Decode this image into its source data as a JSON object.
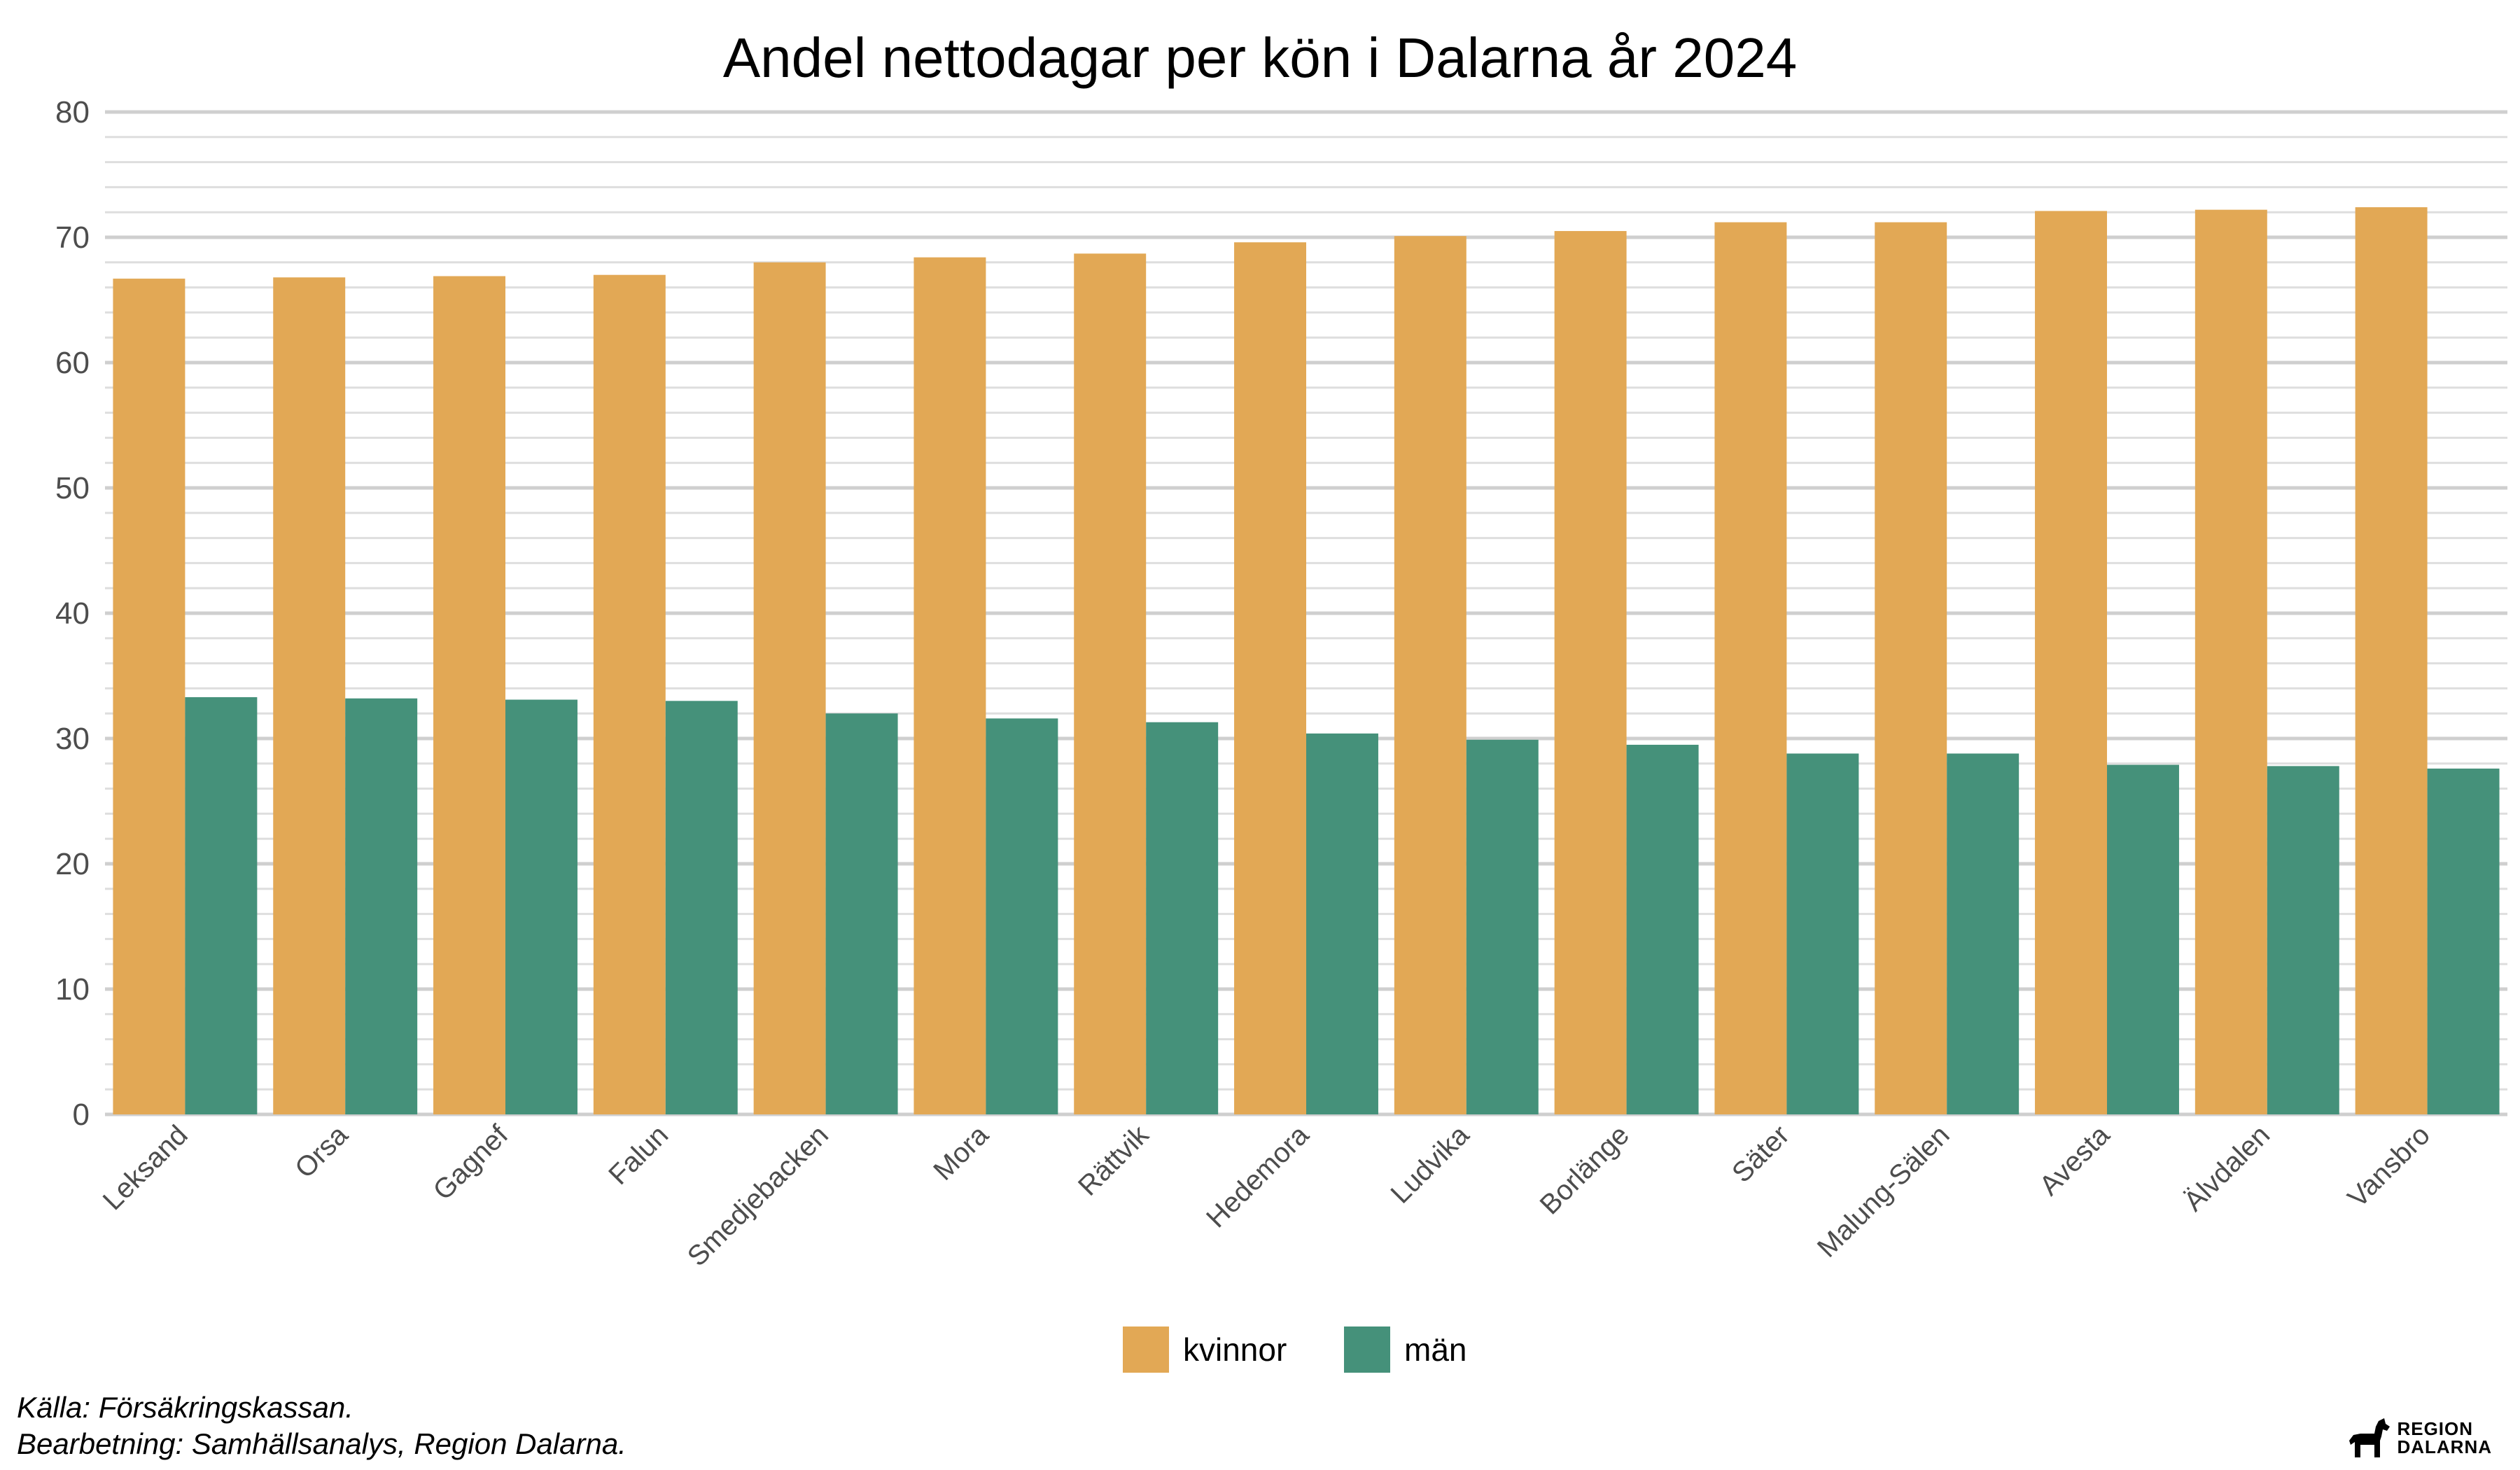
{
  "chart_data": {
    "type": "bar",
    "title": "Andel nettodagar per kön i Dalarna år 2024",
    "xlabel": "",
    "ylabel": "",
    "ylim": [
      0,
      80
    ],
    "yticks": [
      0,
      10,
      20,
      30,
      40,
      50,
      60,
      70,
      80
    ],
    "grid": true,
    "legend_position": "bottom",
    "categories": [
      "Leksand",
      "Orsa",
      "Gagnef",
      "Falun",
      "Smedjebacken",
      "Mora",
      "Rättvik",
      "Hedemora",
      "Ludvika",
      "Borlänge",
      "Säter",
      "Malung-Sälen",
      "Avesta",
      "Älvdalen",
      "Vansbro"
    ],
    "series": [
      {
        "name": "kvinnor",
        "color": "#E2A855",
        "values": [
          66.7,
          66.8,
          66.9,
          67.0,
          68.0,
          68.4,
          68.7,
          69.6,
          70.1,
          70.5,
          71.2,
          71.2,
          72.1,
          72.2,
          72.4
        ]
      },
      {
        "name": "män",
        "color": "#45917A",
        "values": [
          33.3,
          33.2,
          33.1,
          33.0,
          32.0,
          31.6,
          31.3,
          30.4,
          29.9,
          29.5,
          28.8,
          28.8,
          27.9,
          27.8,
          27.6
        ]
      }
    ]
  },
  "caption": {
    "source": "Källa: Försäkringskassan.",
    "processing": "Bearbetning: Samhällsanalys, Region Dalarna."
  },
  "logo": {
    "line1": "REGION",
    "line2": "DALARNA",
    "icon": "dala-horse-icon"
  }
}
